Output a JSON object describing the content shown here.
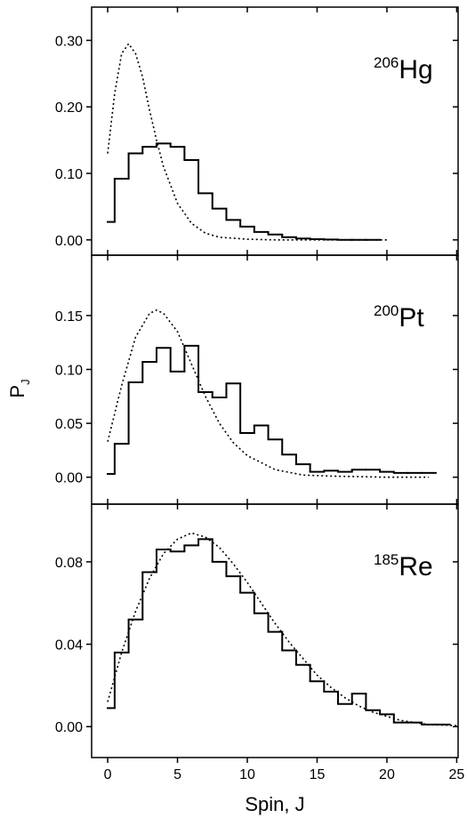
{
  "chart_data": [
    {
      "type": "line",
      "label": {
        "mass": "206",
        "element": "Hg"
      },
      "xlim": [
        -1.15,
        25.1
      ],
      "xticks": [
        0,
        5,
        10,
        15,
        20,
        25
      ],
      "ylim": [
        -0.023,
        0.35
      ],
      "yticks": [
        {
          "value": 0,
          "label": "0.00"
        },
        {
          "value": 0.1,
          "label": "0.10"
        },
        {
          "value": 0.2,
          "label": "0.20"
        },
        {
          "value": 0.3,
          "label": "0.30"
        }
      ],
      "series": [
        {
          "drawstyle": "steps",
          "color": "#000000",
          "x": [
            0,
            1,
            2,
            3,
            4,
            5,
            6,
            7,
            8,
            9,
            10,
            11,
            12,
            13,
            14,
            15,
            16,
            17,
            18,
            19
          ],
          "values": [
            0.027,
            0.092,
            0.13,
            0.14,
            0.145,
            0.14,
            0.12,
            0.07,
            0.047,
            0.03,
            0.02,
            0.012,
            0.008,
            0.004,
            0.002,
            0.001,
            0.0005,
            0,
            0,
            0
          ]
        },
        {
          "drawstyle": "dotted",
          "color": "#000000",
          "x": [
            0,
            0.5,
            1,
            1.5,
            2,
            2.5,
            3,
            3.5,
            4,
            5,
            6,
            7,
            8,
            10,
            12,
            15,
            20
          ],
          "values": [
            0.13,
            0.22,
            0.28,
            0.295,
            0.28,
            0.245,
            0.195,
            0.15,
            0.11,
            0.055,
            0.025,
            0.01,
            0.004,
            0.001,
            0,
            0,
            0
          ]
        }
      ]
    },
    {
      "type": "line",
      "label": {
        "mass": "200",
        "element": "Pt"
      },
      "ylabel": "P",
      "ylabel_subscript": "J",
      "xlim": [
        -1.15,
        25.1
      ],
      "xticks": [
        0,
        5,
        10,
        15,
        20,
        25
      ],
      "ylim": [
        -0.025,
        0.206
      ],
      "yticks": [
        {
          "value": 0,
          "label": "0.00"
        },
        0.05,
        {
          "value": 0.1,
          "label": "0.10"
        },
        0.15
      ],
      "series": [
        {
          "drawstyle": "steps",
          "color": "#000000",
          "x": [
            0,
            1,
            2,
            3,
            4,
            5,
            6,
            7,
            8,
            9,
            10,
            11,
            12,
            13,
            14,
            15,
            16,
            17,
            18,
            19,
            20,
            21,
            22,
            23
          ],
          "values": [
            0.003,
            0.031,
            0.088,
            0.107,
            0.12,
            0.098,
            0.122,
            0.079,
            0.074,
            0.087,
            0.041,
            0.048,
            0.035,
            0.021,
            0.012,
            0.005,
            0.006,
            0.005,
            0.007,
            0.007,
            0.005,
            0.004,
            0.004,
            0.004
          ]
        },
        {
          "drawstyle": "dotted",
          "color": "#000000",
          "x": [
            0,
            1,
            2,
            3,
            3.5,
            4,
            5,
            6,
            7,
            8,
            9,
            10,
            12,
            14,
            16,
            20,
            23
          ],
          "values": [
            0.033,
            0.085,
            0.13,
            0.152,
            0.155,
            0.152,
            0.135,
            0.105,
            0.075,
            0.05,
            0.032,
            0.02,
            0.007,
            0.002,
            0.001,
            0,
            0
          ]
        }
      ]
    },
    {
      "type": "line",
      "label": {
        "mass": "185",
        "element": "Re"
      },
      "xlabel": "Spin, J",
      "xlim": [
        -1.15,
        25.1
      ],
      "xticks": [
        0,
        5,
        10,
        15,
        20,
        25
      ],
      "ylim": [
        -0.015,
        0.108
      ],
      "yticks": [
        {
          "value": 0,
          "label": "0.00"
        },
        0.04,
        0.08
      ],
      "series": [
        {
          "drawstyle": "steps",
          "color": "#000000",
          "x": [
            0,
            1,
            2,
            3,
            4,
            5,
            6,
            7,
            8,
            9,
            10,
            11,
            12,
            13,
            14,
            15,
            16,
            17,
            18,
            19,
            20,
            21,
            22,
            23,
            24
          ],
          "values": [
            0.009,
            0.036,
            0.052,
            0.075,
            0.086,
            0.085,
            0.088,
            0.091,
            0.08,
            0.073,
            0.065,
            0.055,
            0.046,
            0.037,
            0.03,
            0.022,
            0.017,
            0.011,
            0.016,
            0.008,
            0.006,
            0.002,
            0.002,
            0.001,
            0.001
          ]
        },
        {
          "drawstyle": "dotted",
          "color": "#000000",
          "x": [
            0,
            1,
            2,
            3,
            4,
            5,
            6,
            7,
            8,
            9,
            10,
            11,
            12,
            13,
            14,
            15,
            16,
            17,
            18,
            19,
            20,
            21,
            22,
            23,
            25
          ],
          "values": [
            0.012,
            0.036,
            0.056,
            0.072,
            0.084,
            0.091,
            0.094,
            0.092,
            0.087,
            0.079,
            0.07,
            0.06,
            0.05,
            0.041,
            0.033,
            0.025,
            0.019,
            0.014,
            0.01,
            0.007,
            0.005,
            0.003,
            0.002,
            0.001,
            0.0005
          ]
        }
      ]
    }
  ]
}
